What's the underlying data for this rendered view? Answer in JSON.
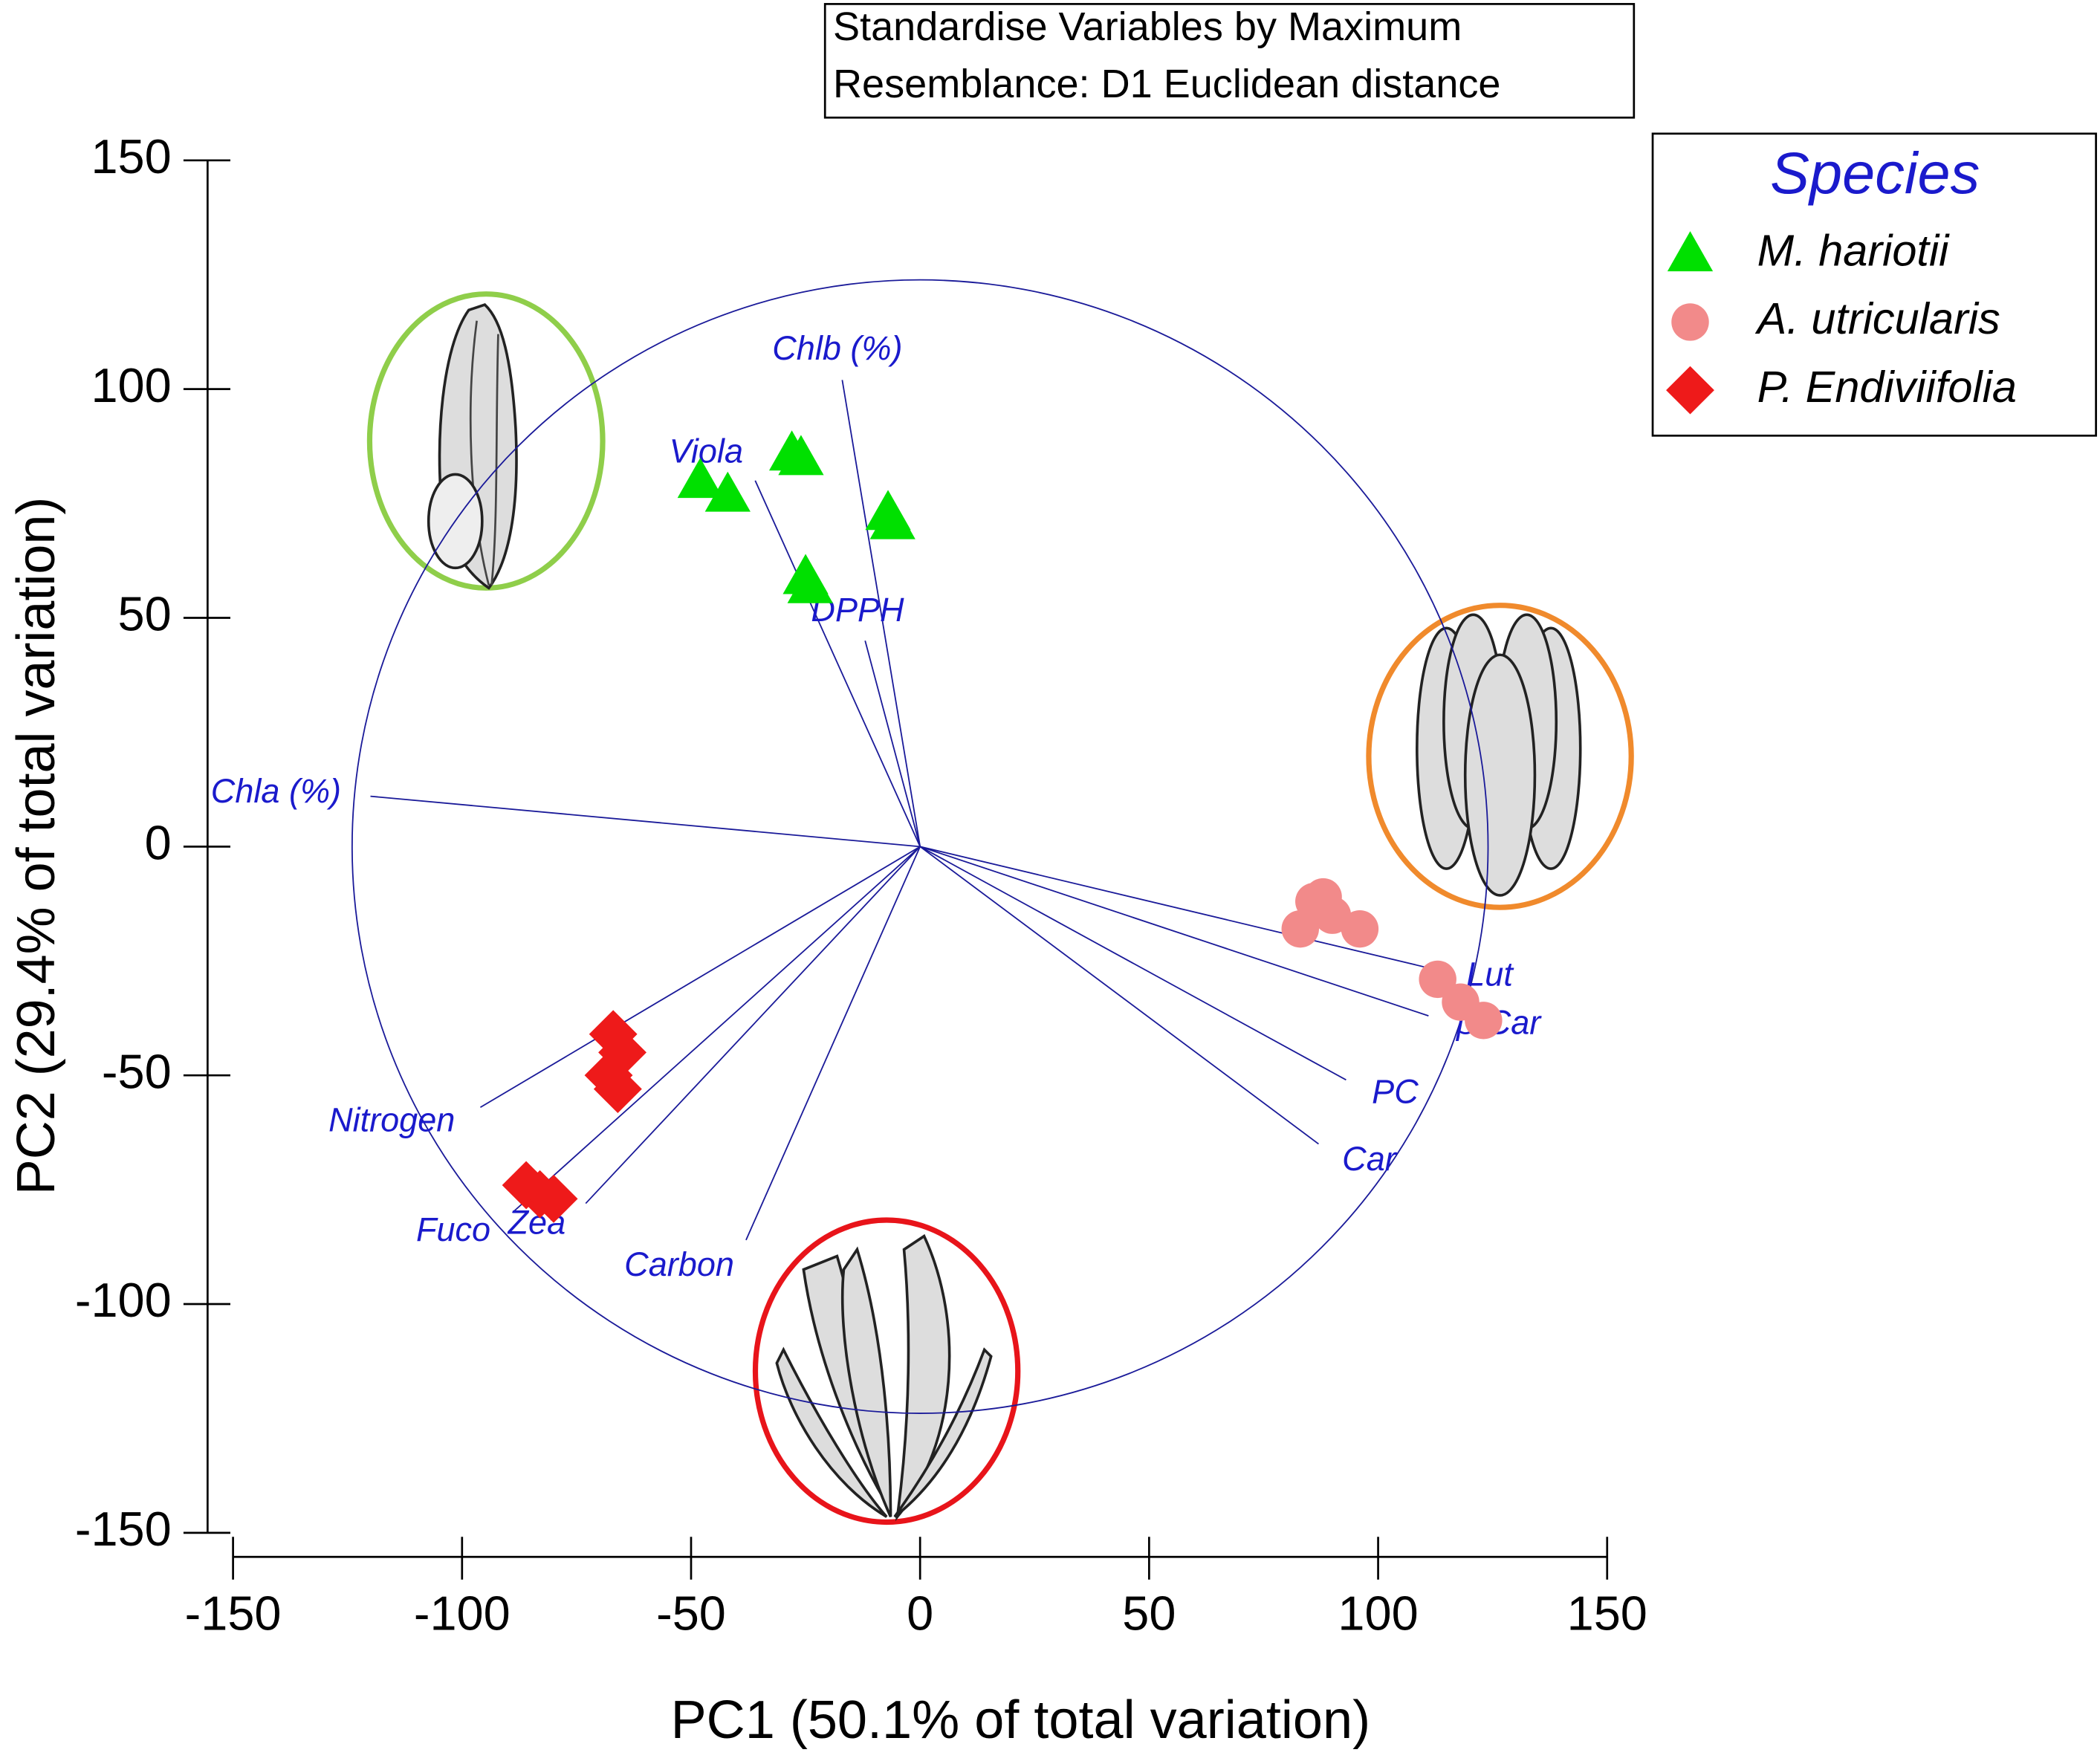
{
  "chart_data": {
    "type": "scatter",
    "annotations": [
      "Standardise Variables by Maximum",
      "Resemblance: D1 Euclidean distance"
    ],
    "x_label": "PC1 (50.1% of total variation)",
    "y_label": "PC2 (29.4% of total variation)",
    "xlim": [
      -150,
      150
    ],
    "xticks": [
      -150,
      -100,
      -50,
      0,
      50,
      100,
      150
    ],
    "ylim": [
      -150,
      150
    ],
    "yticks": [
      -150,
      -100,
      -50,
      0,
      50,
      100,
      150
    ],
    "legend_title": "Species",
    "legend_position": "upper right",
    "series": [
      {
        "name": "M. hariotii",
        "color": "#00e000",
        "marker": "triangle",
        "x": [
          -48,
          -42,
          -28,
          -26,
          -25,
          -24,
          -7,
          -6
        ],
        "values": [
          80,
          77,
          86,
          85,
          59,
          57,
          73,
          71
        ]
      },
      {
        "name": "A. utricularis",
        "color": "#f28a8a",
        "marker": "circle",
        "x": [
          83,
          86,
          88,
          90,
          96,
          113,
          118,
          123
        ],
        "values": [
          -18,
          -12,
          -11,
          -15,
          -18,
          -29,
          -34,
          -38
        ]
      },
      {
        "name": "P. Endiviifolia",
        "color": "#ee1a1a",
        "marker": "diamond",
        "x": [
          -67,
          -65,
          -68,
          -66,
          -86,
          -83,
          -80
        ],
        "values": [
          -41,
          -45,
          -50,
          -53,
          -74,
          -76,
          -77
        ]
      }
    ],
    "correlation_circle_radius": 124,
    "vector_color": "#1a1a99",
    "vectors": [
      {
        "label": "Chla (%)",
        "x": -120,
        "y": 11
      },
      {
        "label": "Chlb (%)",
        "x": -17,
        "y": 102
      },
      {
        "label": "Viola",
        "x": -36,
        "y": 80
      },
      {
        "label": "DPPH",
        "x": -12,
        "y": 45
      },
      {
        "label": "Lut",
        "x": 113,
        "y": -27
      },
      {
        "label": "β-Car",
        "x": 111,
        "y": -37
      },
      {
        "label": "PC",
        "x": 93,
        "y": -51
      },
      {
        "label": "Car",
        "x": 87,
        "y": -65
      },
      {
        "label": "Nitrogen",
        "x": -96,
        "y": -57
      },
      {
        "label": "Fuco",
        "x": -89,
        "y": -80
      },
      {
        "label": "Zea",
        "x": -73,
        "y": -78
      },
      {
        "label": "Carbon",
        "x": -38,
        "y": -86
      }
    ]
  }
}
